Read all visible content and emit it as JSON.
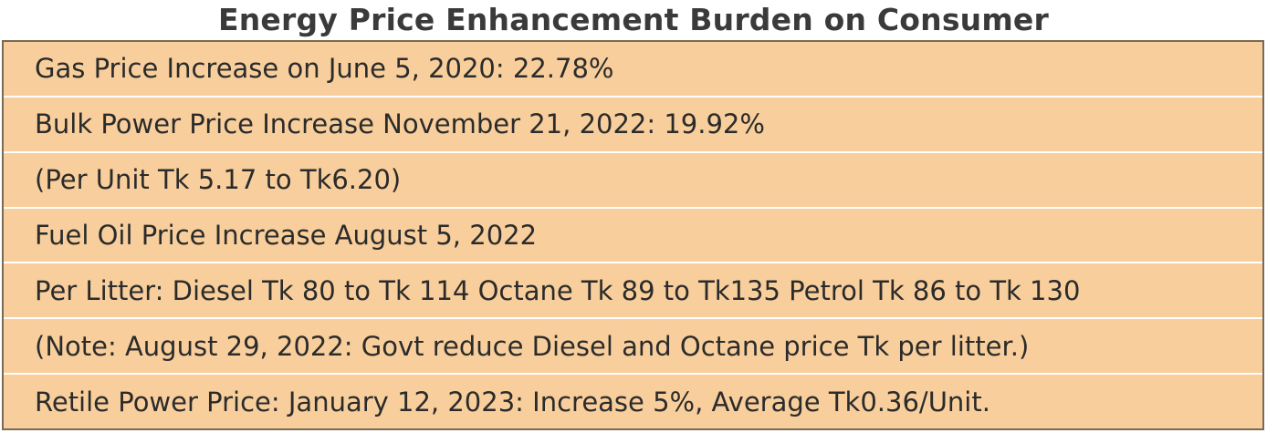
{
  "title": "Energy Price Enhancement Burden on Consumer",
  "rows": [
    "Gas Price Increase on June 5, 2020: 22.78%",
    "Bulk Power Price Increase November 21, 2022: 19.92%",
    "(Per Unit Tk 5.17 to Tk6.20)",
    "Fuel Oil Price Increase August 5, 2022",
    "Per Litter: Diesel Tk 80 to Tk 114 Octane Tk 89 to Tk135 Petrol Tk 86 to Tk 130",
    "(Note: August 29, 2022: Govt reduce Diesel and Octane price Tk per litter.)",
    "Retile Power Price: January 12, 2023: Increase 5%, Average Tk0.36/Unit."
  ],
  "colors": {
    "background": "#f8cf9c",
    "row_divider": "#ffffff",
    "border": "#7a6a55",
    "title_text": "#3a3a3a",
    "body_text": "#2b2b2b"
  }
}
